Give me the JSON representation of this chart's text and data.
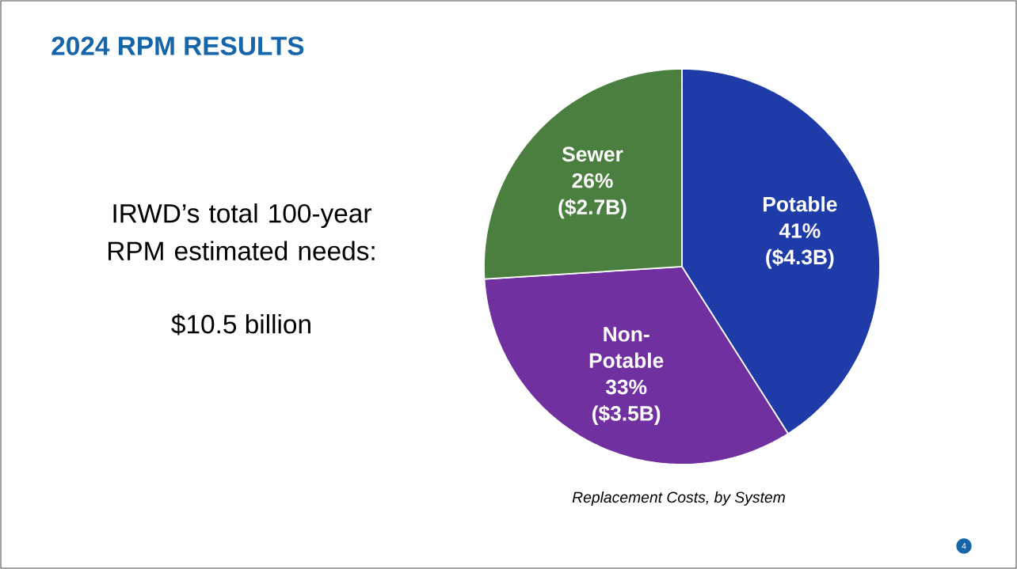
{
  "chart_data": {
    "type": "pie",
    "title": "2024 RPM RESULTS",
    "categories": [
      "Potable",
      "Non-Potable",
      "Sewer"
    ],
    "values": [
      41,
      33,
      26
    ],
    "value_labels": [
      "41% ($4.3B)",
      "33% ($3.5B)",
      "26% ($2.7B)"
    ],
    "colors": [
      "#1f3ba8",
      "#7030a0",
      "#4a7f3f"
    ],
    "annotations": [
      "IRWD’s total 100-year RPM estimated needs:",
      "$10.5 billion",
      "Replacement Costs, by System",
      "4"
    ]
  }
}
